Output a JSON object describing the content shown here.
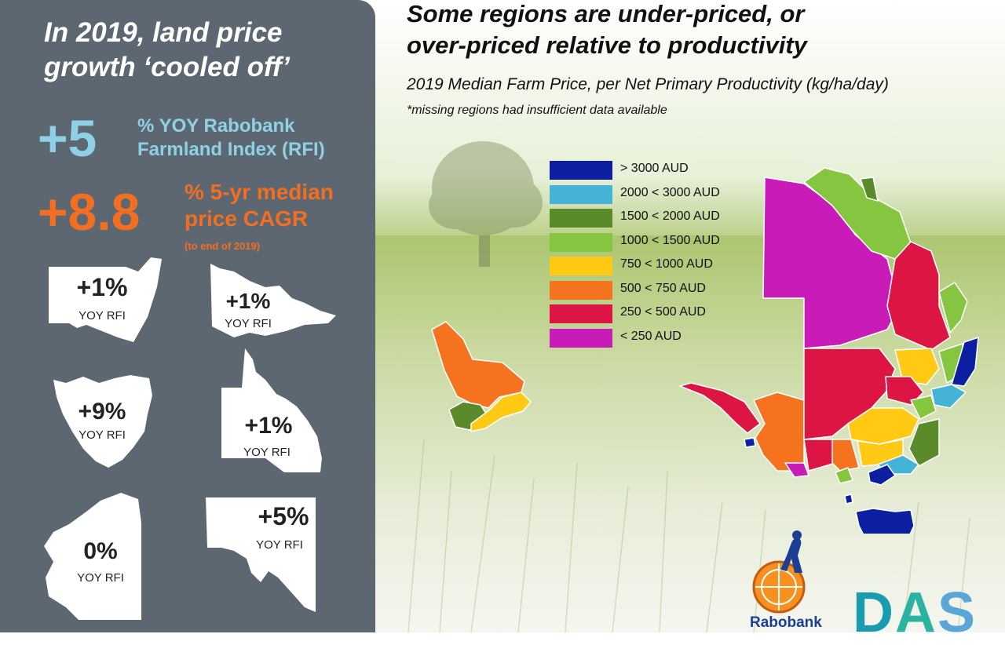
{
  "left_panel": {
    "title_line1": "In 2019, land price",
    "title_line2": "growth ‘cooled off’",
    "rfi": {
      "value": "+5",
      "label_line1": "% YOY Rabobank",
      "label_line2": "Farmland Index (RFI)"
    },
    "cagr": {
      "value": "+8.8",
      "label_line1": "% 5-yr median",
      "label_line2": "price CAGR",
      "note": "(to end of 2019)"
    },
    "states": [
      {
        "value": "+1%",
        "label": "YOY RFI"
      },
      {
        "value": "+1%",
        "label": "YOY RFI"
      },
      {
        "value": "+9%",
        "label": "YOY RFI"
      },
      {
        "value": "+1%",
        "label": "YOY RFI"
      },
      {
        "value": "0%",
        "label": "YOY RFI"
      },
      {
        "value": "+5%",
        "label": "YOY RFI"
      }
    ]
  },
  "main": {
    "title_line1": "Some regions are under-priced, or",
    "title_line2": "over-priced relative to productivity",
    "subtitle": "2019 Median Farm Price, per Net Primary Productivity (kg/ha/day)",
    "footnote": "*missing regions had insufficient data available"
  },
  "legend": [
    {
      "label": "> 3000 AUD",
      "color": "#0b1fa0"
    },
    {
      "label": "2000 < 3000 AUD",
      "color": "#45b3d6"
    },
    {
      "label": "1500 < 2000 AUD",
      "color": "#5a8a2a"
    },
    {
      "label": "1000 < 1500 AUD",
      "color": "#86c540"
    },
    {
      "label": "750 < 1000 AUD",
      "color": "#ffc914"
    },
    {
      "label": "500 < 750 AUD",
      "color": "#f5731e"
    },
    {
      "label": "250 <  500 AUD",
      "color": "#dc1544"
    },
    {
      "label": "< 250 AUD",
      "color": "#c91bb8"
    }
  ],
  "logos": {
    "rabobank": "Rabobank",
    "das": "DAS",
    "das_colors": [
      "#1a9cb0",
      "#2bb3a2",
      "#5aa6d6"
    ]
  }
}
